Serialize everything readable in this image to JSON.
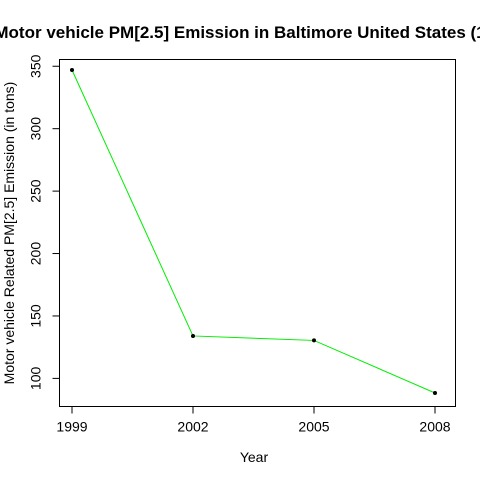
{
  "chart_data": {
    "type": "line",
    "title": "Motor vehicle  PM[2.5] Emission in Baltimore United States (1",
    "xlabel": "Year",
    "ylabel": "Motor vehicle Related PM[2.5]  Emission (in tons)",
    "x": [
      1999,
      2002,
      2005,
      2008
    ],
    "series": [
      {
        "values": [
          347,
          134,
          130.4,
          88.3
        ]
      }
    ],
    "x_ticks": [
      "1999",
      "2002",
      "2005",
      "2008"
    ],
    "y_ticks": [
      "100",
      "150",
      "200",
      "250",
      "300",
      "350"
    ],
    "xlim": [
      1999,
      2008
    ],
    "ylim": [
      88.3,
      347
    ],
    "line_color": "#00ee00",
    "point_color": "#000000",
    "grid": false,
    "legend": false
  }
}
